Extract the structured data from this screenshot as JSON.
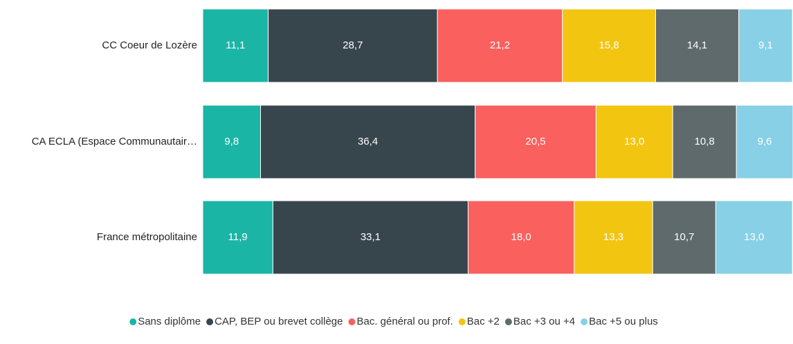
{
  "chart_data": {
    "type": "stacked_bar",
    "orientation": "horizontal",
    "categories": [
      "CC Coeur de Lozère",
      "CA ECLA (Espace Communautair…",
      "France métropolitaine"
    ],
    "series": [
      {
        "name": "Sans diplôme",
        "color": "#1bb5a5",
        "values": [
          11.1,
          9.8,
          11.9
        ],
        "value_labels": [
          "11,1",
          "9,8",
          "11,9"
        ]
      },
      {
        "name": "CAP, BEP ou brevet collège",
        "color": "#37464c",
        "values": [
          28.7,
          36.4,
          33.1
        ],
        "value_labels": [
          "28,7",
          "36,4",
          "33,1"
        ]
      },
      {
        "name": "Bac. général ou prof.",
        "color": "#f9605e",
        "values": [
          21.2,
          20.5,
          18.0
        ],
        "value_labels": [
          "21,2",
          "20,5",
          "18,0"
        ]
      },
      {
        "name": "Bac +2",
        "color": "#f2c511",
        "values": [
          15.8,
          13.0,
          13.3
        ],
        "value_labels": [
          "15,8",
          "13,0",
          "13,3"
        ]
      },
      {
        "name": "Bac +3 ou +4",
        "color": "#5f6a6c",
        "values": [
          14.1,
          10.8,
          10.7
        ],
        "value_labels": [
          "14,1",
          "10,8",
          "10,7"
        ]
      },
      {
        "name": "Bac +5 ou plus",
        "color": "#87d0e6",
        "values": [
          9.1,
          9.6,
          13.0
        ],
        "value_labels": [
          "9,1",
          "9,6",
          "13,0"
        ]
      }
    ],
    "legend": "bottom"
  }
}
